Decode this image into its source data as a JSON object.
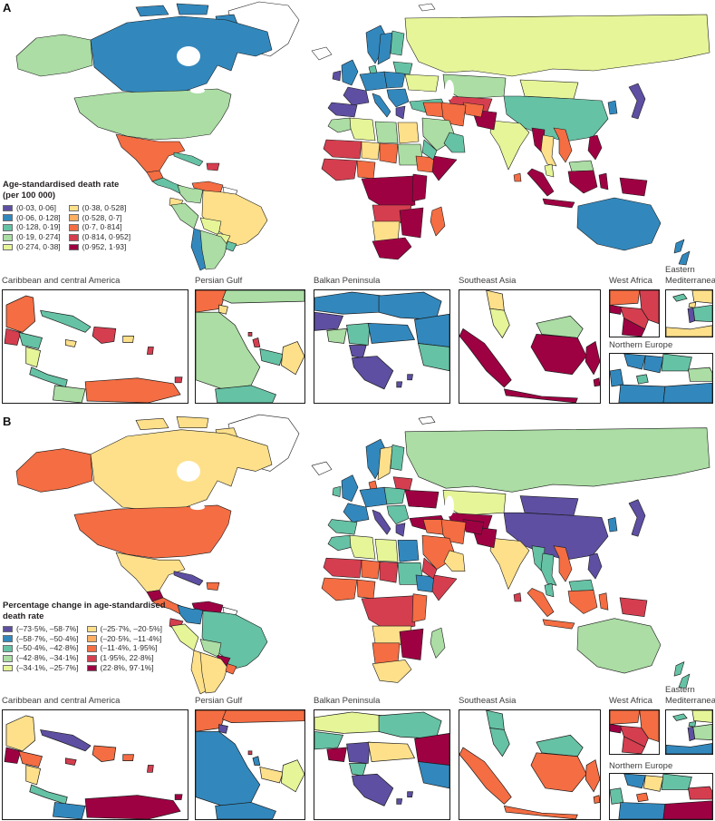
{
  "inset_labels": [
    "Caribbean and central America",
    "Persian Gulf",
    "Balkan Peninsula",
    "Southeast Asia",
    "West Africa",
    "Eastern Mediterranean",
    "Northern Europe"
  ],
  "palette": [
    "#5e4fa2",
    "#3288bd",
    "#66c2a5",
    "#abdda4",
    "#e6f598",
    "#fee08b",
    "#fdae61",
    "#f46d43",
    "#d53e4f",
    "#9e0142"
  ],
  "no_data_color": "#ffffff",
  "panels": [
    {
      "label": "A",
      "legend": {
        "title1": "Age-standardised death rate",
        "title2": "(per 100 000)"
      }
    },
    {
      "label": "B",
      "legend": {
        "title1": "Percentage change in age-standardised",
        "title2": "death rate"
      }
    }
  ],
  "chart_data": [
    {
      "type": "choropleth_map",
      "panel": "A",
      "title": "Age-standardised death rate (per 100 000)",
      "legend_bins": [
        "(0·03, 0·06]",
        "(0·06, 0·128]",
        "(0·128, 0·19]",
        "(0·19, 0·274]",
        "(0·274, 0·38]",
        "(0·38, 0·528]",
        "(0·528, 0·7]",
        "(0·7, 0·814]",
        "(0·814, 0·952]",
        "(0·952, 1·93]"
      ],
      "palette": [
        "#5e4fa2",
        "#3288bd",
        "#66c2a5",
        "#abdda4",
        "#e6f598",
        "#fee08b",
        "#fdae61",
        "#f46d43",
        "#d53e4f",
        "#9e0142"
      ],
      "no_data": "white",
      "country_bins": {
        "canada": 1,
        "arctic1": 1,
        "arctic2": 1,
        "arctic3": 1,
        "alaska": 3,
        "usa": 3,
        "mexico": 7,
        "guatemala": 7,
        "centralamerica": 2,
        "cuba": 2,
        "hispaniola": 8,
        "colombia": 3,
        "venezuela": 7,
        "ecuador": 5,
        "peru": 3,
        "brazil": 5,
        "bolivia": 4,
        "paraguay": 4,
        "chile": 1,
        "argentina": 3,
        "uruguay": 2,
        "uk": 1,
        "ireland": 0,
        "norway": 1,
        "sweden": 1,
        "finland": 2,
        "denmark": 2,
        "germany": 1,
        "poland": 1,
        "france": 0,
        "spain": 0,
        "italy": 1,
        "balkans": 1,
        "greece": 0,
        "ukraine": 4,
        "belarus": 2,
        "turkey": 2,
        "morocco": 3,
        "algeria": 4,
        "libya": 3,
        "egypt": 5,
        "maurimali": 8,
        "niger": 5,
        "chad": 7,
        "sudan": 3,
        "wafrica": 8,
        "nigeria": 7,
        "ethiopia": 7,
        "somalia": 9,
        "cafrica": 9,
        "eafrica": 9,
        "angolazambia": 8,
        "namibotswana": 5,
        "zimmoz": 9,
        "southafrica": 9,
        "madagascar": 7,
        "russia": 4,
        "kazakhstan": 3,
        "centralasia": 8,
        "mongolia": 4,
        "china": 2,
        "japan": 0,
        "korea": 1,
        "india": 4,
        "pakistan": 9,
        "afghanistan": 7,
        "iran": 7,
        "iraq": 7,
        "saudi": 3,
        "yemen": 2,
        "oman": 2,
        "myanmar": 9,
        "thailand": 5,
        "vietnam": 7,
        "malaypen": 4,
        "borneomy": 3,
        "borneoid": 9,
        "sumatra": 9,
        "java": 9,
        "sulawesi": 9,
        "newguinea": 9,
        "philippines": 9,
        "srilanka": 7,
        "australia": 1,
        "newzealand1": 1,
        "newzealand2": 1
      },
      "inset_fills": {
        "caribbean": {
          "yucatan": 7,
          "guatemala": 8,
          "honduras": 2,
          "nicaragua": 4,
          "costarica-panama": 2,
          "cuba": 2,
          "jamaica": 5,
          "hispaniola": 8,
          "puertorico": 5,
          "lesser-antilles": 8,
          "colombia-coast": 3,
          "venezuela-coast": 7,
          "trinidad": 8
        },
        "persian-gulf": {
          "iraq": 7,
          "iran-top": 3,
          "kuwait": 5,
          "saudi": 3,
          "qatar": 8,
          "bahrain": 8,
          "uae": 2,
          "oman": 5,
          "yemen": 2
        },
        "balkan": {
          "hungary": 1,
          "romania": 1,
          "croatia": 0,
          "bosnia": 3,
          "serbia": 2,
          "bulgaria": 1,
          "turkey-ne": 1,
          "albania": 0,
          "greece": 0,
          "island1": 0,
          "island2": 0,
          "turkey-right": 2
        },
        "southeast-asia": {
          "thai-top": 5,
          "malay-pen": 4,
          "sumatra": 9,
          "borneo-my": 3,
          "borneo-id": 9,
          "java": 9,
          "sulawesi": 9,
          "islands-e": 9
        },
        "west-africa": {
          "top-band": 7,
          "right-band": 8,
          "senegal": 9,
          "mid": 8,
          "south-blob": 9
        },
        "eastern-med": {
          "cyprus": 2,
          "syria": 5,
          "lebanon": 5,
          "israel": 0,
          "jordan": 2,
          "egypt-corner": 5
        },
        "northern-europe": {
          "norway": 1,
          "sweden": 1,
          "finland": 2,
          "baltics": 3,
          "denmark": 2,
          "uk-corner": 1,
          "germany": 1,
          "poland-right": 1
        }
      }
    },
    {
      "type": "choropleth_map",
      "panel": "B",
      "title": "Percentage change in age-standardised death rate",
      "legend_bins": [
        "(–73·5%, –58·7%]",
        "(–58·7%, –50·4%]",
        "(–50·4%, –42·8%]",
        "(–42·8%, –34·1%]",
        "(–34·1%, –25·7%]",
        "(–25·7%, –20·5%]",
        "(–20·5%, –11·4%]",
        "(–11·4%, 1·95%]",
        "(1·95%, 22·8%]",
        "(22·8%, 97·1%]"
      ],
      "palette": [
        "#5e4fa2",
        "#3288bd",
        "#66c2a5",
        "#abdda4",
        "#e6f598",
        "#fee08b",
        "#fdae61",
        "#f46d43",
        "#d53e4f",
        "#9e0142"
      ],
      "no_data": "white",
      "country_bins": {
        "canada": 5,
        "arctic1": 5,
        "arctic2": 5,
        "arctic3": 5,
        "alaska": 7,
        "usa": 7,
        "mexico": 5,
        "guatemala": 9,
        "centralamerica": 7,
        "cuba": 0,
        "hispaniola": 7,
        "colombia": 1,
        "venezuela": 9,
        "ecuador": 8,
        "peru": 4,
        "brazil": 2,
        "bolivia": 3,
        "paraguay": 9,
        "chile": 5,
        "argentina": 5,
        "uruguay": 7,
        "uk": 1,
        "ireland": 2,
        "norway": 1,
        "sweden": 5,
        "finland": 2,
        "denmark": 7,
        "germany": 1,
        "poland": 2,
        "france": 1,
        "spain": 2,
        "italy": 0,
        "balkans": 2,
        "greece": 0,
        "ukraine": 9,
        "belarus": 8,
        "turkey": 9,
        "morocco": 2,
        "algeria": 4,
        "libya": 4,
        "egypt": 1,
        "maurimali": 8,
        "niger": 7,
        "chad": 8,
        "sudan": 2,
        "wafrica": 7,
        "nigeria": 7,
        "ethiopia": 1,
        "somalia": 8,
        "cafrica": 8,
        "eafrica": 7,
        "angolazambia": 5,
        "namibotswana": 7,
        "zimmoz": 9,
        "southafrica": 5,
        "madagascar": 3,
        "russia": 3,
        "kazakhstan": 4,
        "centralasia": 9,
        "mongolia": 0,
        "china": 0,
        "japan": 0,
        "korea": 1,
        "india": 5,
        "pakistan": 9,
        "afghanistan": 9,
        "iran": 7,
        "iraq": 7,
        "saudi": 7,
        "yemen": 8,
        "oman": 5,
        "myanmar": 2,
        "thailand": 2,
        "vietnam": 7,
        "malaypen": 2,
        "borneomy": 2,
        "borneoid": 7,
        "sumatra": 7,
        "java": 7,
        "sulawesi": 7,
        "newguinea": 8,
        "philippines": 0,
        "srilanka": 8,
        "australia": 3,
        "newzealand1": 2,
        "newzealand2": 2
      },
      "inset_fills": {
        "caribbean": {
          "yucatan": 5,
          "guatemala": 9,
          "honduras": 7,
          "nicaragua": 5,
          "costarica-panama": 2,
          "cuba": 0,
          "jamaica": 8,
          "hispaniola": 7,
          "puertorico": 7,
          "lesser-antilles": 8,
          "colombia-coast": 1,
          "venezuela-coast": 9,
          "trinidad": 9
        },
        "persian-gulf": {
          "iraq": 7,
          "iran-top": 7,
          "kuwait": 0,
          "saudi": 1,
          "qatar": 1,
          "bahrain": 8,
          "uae": 5,
          "oman": 4,
          "yemen": 1
        },
        "balkan": {
          "hungary": 4,
          "romania": 2,
          "croatia": 2,
          "bosnia": 9,
          "serbia": 0,
          "bulgaria": 5,
          "turkey-ne": 9,
          "albania": 2,
          "greece": 0,
          "island1": 0,
          "island2": 0,
          "turkey-right": 1
        },
        "southeast-asia": {
          "thai-top": 2,
          "malay-pen": 2,
          "sumatra": 7,
          "borneo-my": 2,
          "borneo-id": 7,
          "java": 7,
          "sulawesi": 7,
          "islands-e": 7
        },
        "west-africa": {
          "top-band": 7,
          "right-band": 7,
          "senegal": 9,
          "mid": 8,
          "south-blob": 8
        },
        "eastern-med": {
          "cyprus": 2,
          "syria": 4,
          "lebanon": 2,
          "israel": 0,
          "jordan": 3,
          "egypt-corner": 1
        },
        "northern-europe": {
          "norway": 1,
          "sweden": 5,
          "finland": 2,
          "baltics": 8,
          "denmark": 7,
          "uk-corner": 2,
          "germany": 1,
          "poland-right": 9
        }
      }
    }
  ]
}
